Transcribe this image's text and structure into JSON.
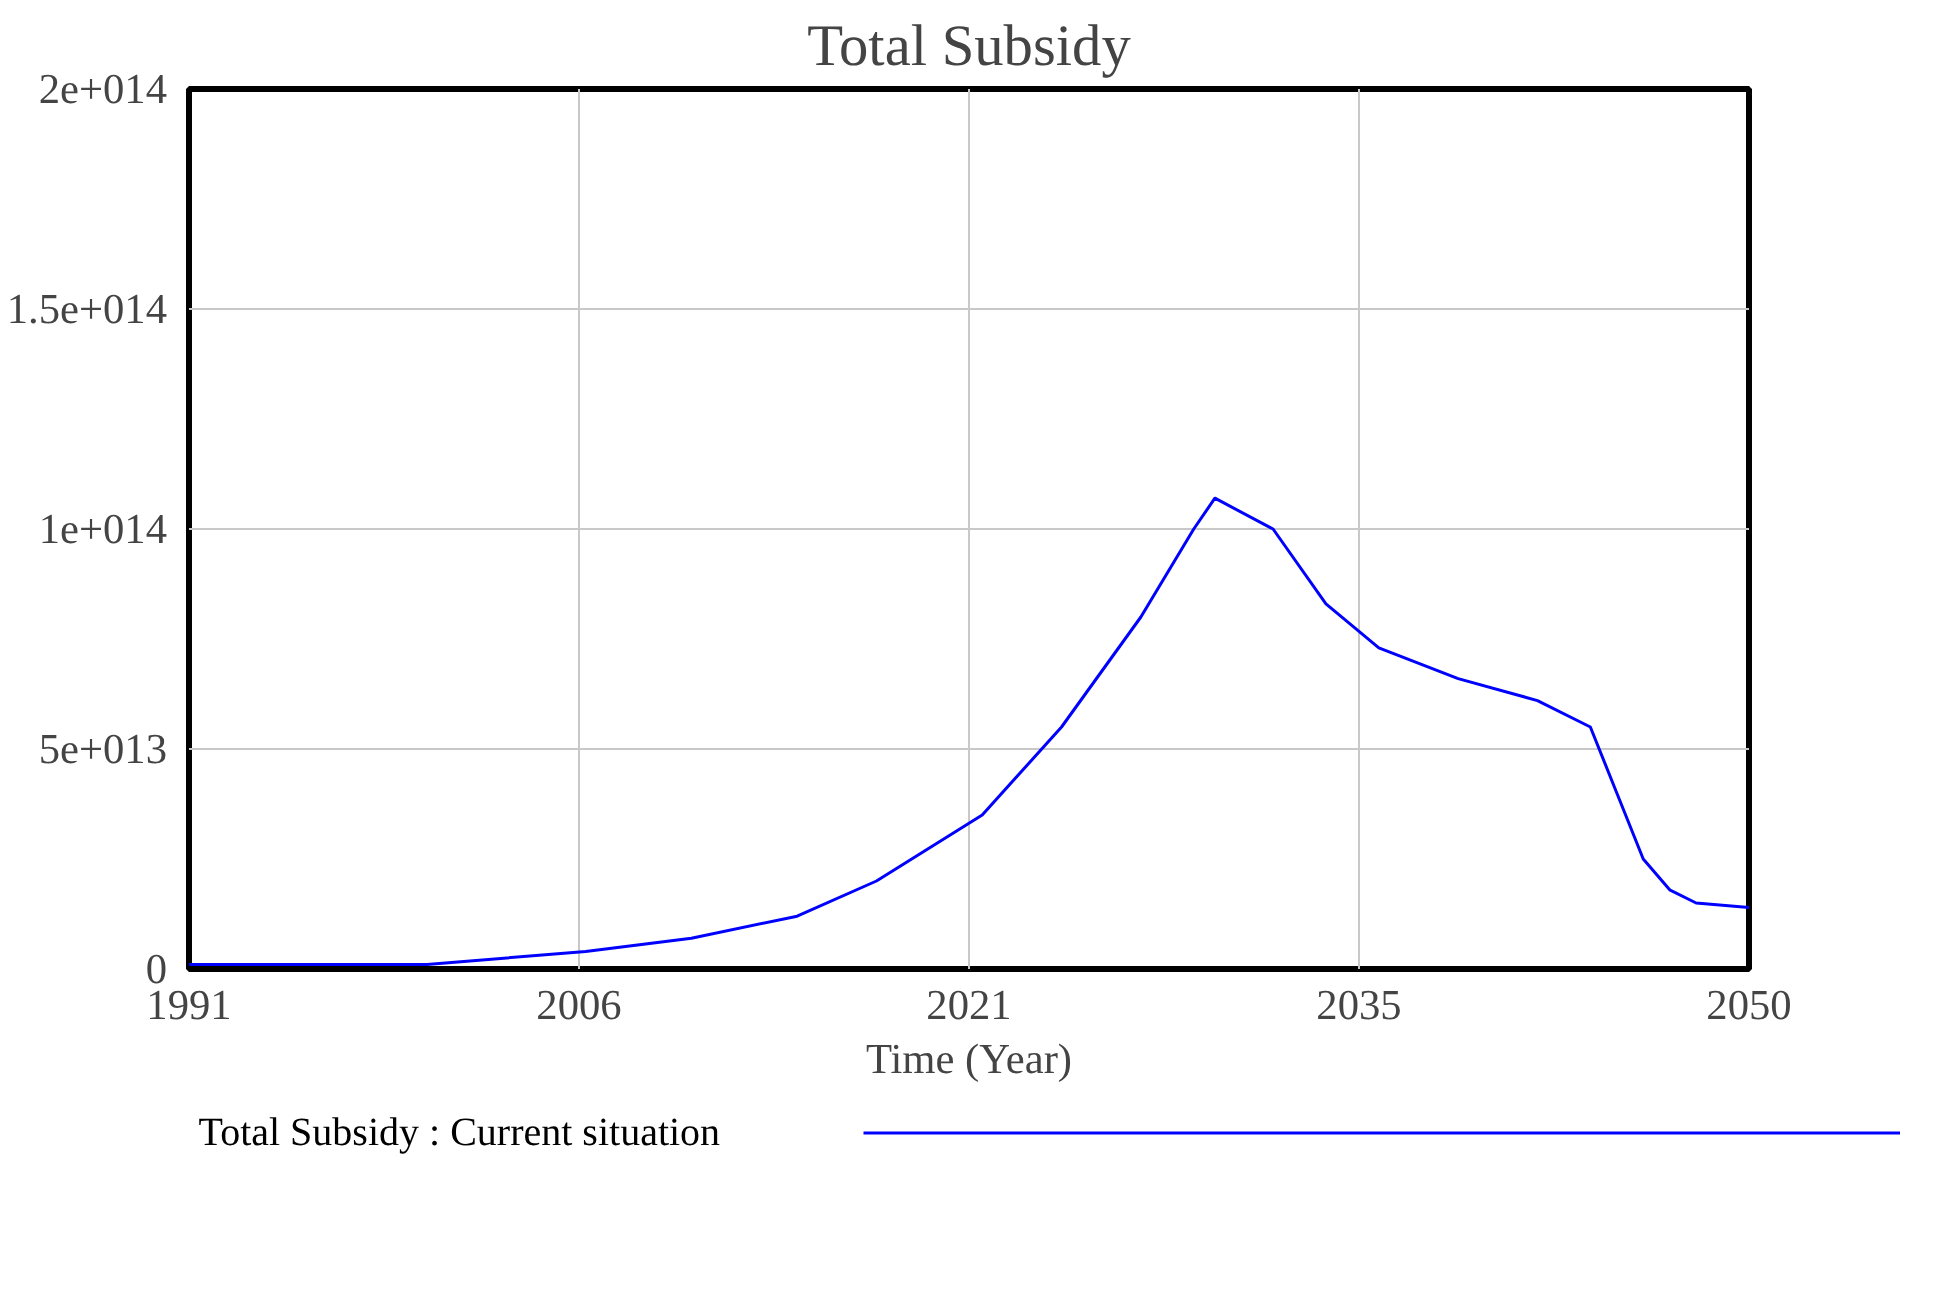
{
  "chart_data": {
    "type": "line",
    "title": "Total Subsidy",
    "xlabel": "Time (Year)",
    "x": [
      1991,
      2000,
      2006,
      2010,
      2014,
      2017,
      2021,
      2024,
      2027,
      2029,
      2029.8,
      2032,
      2034,
      2036,
      2039,
      2042,
      2044,
      2045,
      2046,
      2047,
      2048,
      2050
    ],
    "series": [
      {
        "name": "Total Subsidy : Current situation",
        "color": "#0000ff",
        "values": [
          1000000000000.0,
          1000000000000.0,
          4000000000000.0,
          7000000000000.0,
          12000000000000.0,
          20000000000000.0,
          35000000000000.0,
          55000000000000.0,
          80000000000000.0,
          100000000000000.0,
          107000000000000.0,
          100000000000000.0,
          83000000000000.0,
          73000000000000.0,
          66000000000000.0,
          61000000000000.0,
          55000000000000.0,
          40000000000000.0,
          25000000000000.0,
          18000000000000.0,
          15000000000000.0,
          14000000000000.0
        ]
      }
    ],
    "xlim": [
      1991,
      2050
    ],
    "xticks": [
      1991,
      {
        "value": 2005.75,
        "label": "2006"
      },
      {
        "value": 2020.5,
        "label": "2021"
      },
      {
        "value": 2035.25,
        "label": "2035"
      },
      2050
    ],
    "ylim": [
      0,
      200000000000000.0
    ],
    "yticks": [
      {
        "value": 0,
        "label": "0"
      },
      {
        "value": 50000000000000.0,
        "label": "5e+013"
      },
      {
        "value": 100000000000000.0,
        "label": "1e+014"
      },
      {
        "value": 150000000000000.0,
        "label": "1.5e+014"
      },
      {
        "value": 200000000000000.0,
        "label": "2e+014"
      }
    ],
    "grid": true,
    "legend": "bottom",
    "line_style": "solid",
    "marker": "none"
  }
}
